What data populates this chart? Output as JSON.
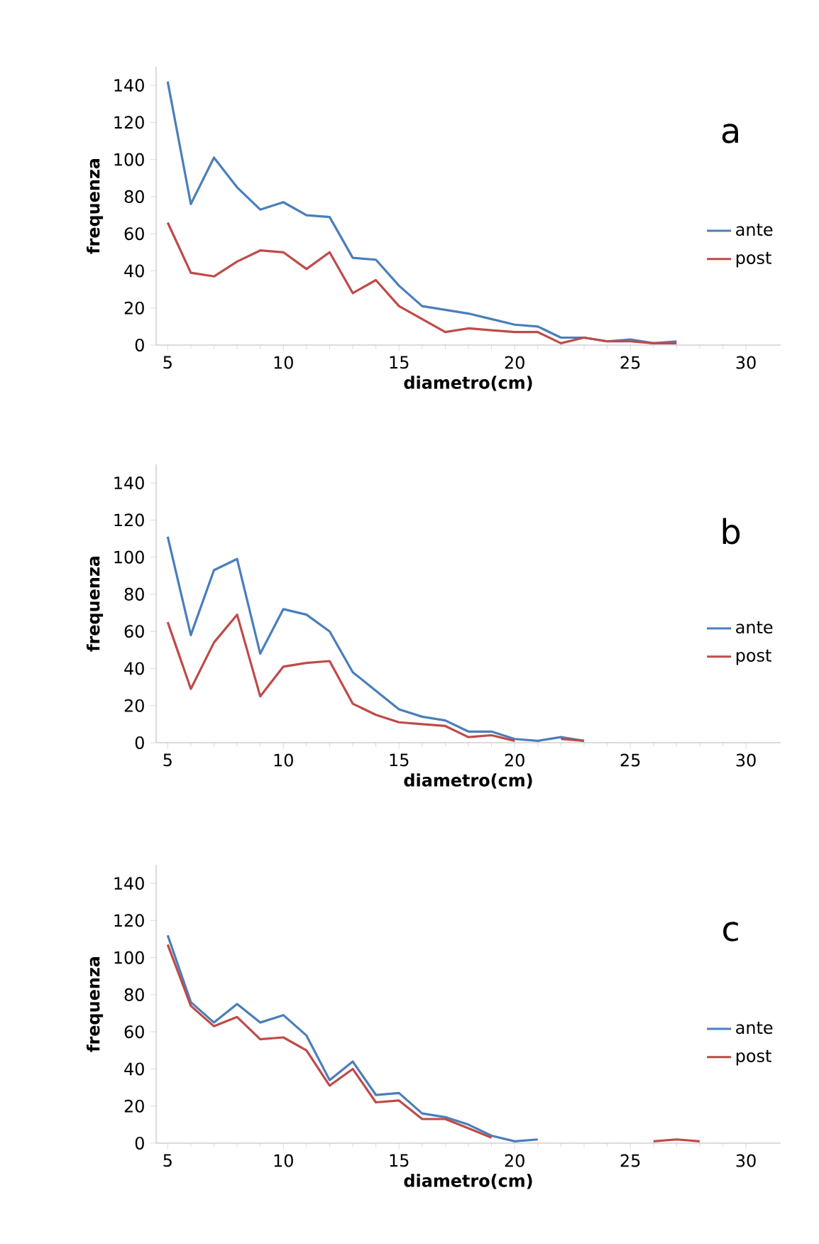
{
  "chart_data": [
    {
      "type": "line",
      "title": "a",
      "xlabel": "diametro(cm)",
      "ylabel": "frequenza",
      "xlim": [
        4.5,
        31.5
      ],
      "ylim": [
        0,
        150
      ],
      "xticks": [
        5,
        10,
        15,
        20,
        25,
        30
      ],
      "yticks": [
        0,
        20,
        40,
        60,
        80,
        100,
        120,
        140
      ],
      "legend": "right",
      "series": [
        {
          "name": "ante",
          "color": "#4a7ebb",
          "x": [
            5,
            6,
            7,
            8,
            9,
            10,
            11,
            12,
            13,
            14,
            15,
            16,
            17,
            18,
            19,
            20,
            21,
            22,
            23,
            24,
            25,
            26,
            27
          ],
          "values": [
            142,
            76,
            101,
            85,
            73,
            77,
            70,
            69,
            47,
            46,
            32,
            21,
            19,
            17,
            14,
            11,
            10,
            4,
            4,
            2,
            3,
            1,
            2
          ]
        },
        {
          "name": "post",
          "color": "#be4b48",
          "x": [
            5,
            6,
            7,
            8,
            9,
            10,
            11,
            12,
            13,
            14,
            15,
            16,
            17,
            18,
            19,
            20,
            21,
            22,
            23,
            24,
            25,
            26,
            27
          ],
          "values": [
            66,
            39,
            37,
            45,
            51,
            50,
            41,
            50,
            28,
            35,
            21,
            14,
            7,
            9,
            8,
            7,
            7,
            1,
            4,
            2,
            2,
            1,
            1
          ]
        }
      ]
    },
    {
      "type": "line",
      "title": "b",
      "xlabel": "diametro(cm)",
      "ylabel": "frequenza",
      "xlim": [
        4.5,
        31.5
      ],
      "ylim": [
        0,
        150
      ],
      "xticks": [
        5,
        10,
        15,
        20,
        25,
        30
      ],
      "yticks": [
        0,
        20,
        40,
        60,
        80,
        100,
        120,
        140
      ],
      "legend": "right",
      "series": [
        {
          "name": "ante",
          "color": "#4a7ebb",
          "x": [
            5,
            6,
            7,
            8,
            9,
            10,
            11,
            12,
            13,
            14,
            15,
            16,
            17,
            18,
            19,
            20,
            21,
            22,
            23
          ],
          "values": [
            111,
            58,
            93,
            99,
            48,
            72,
            69,
            60,
            38,
            28,
            18,
            14,
            12,
            6,
            6,
            2,
            1,
            3,
            1
          ]
        },
        {
          "name": "post",
          "color": "#be4b48",
          "x": [
            5,
            6,
            7,
            8,
            9,
            10,
            11,
            12,
            13,
            14,
            15,
            16,
            17,
            18,
            19,
            20,
            21,
            22,
            23
          ],
          "values": [
            65,
            29,
            54,
            69,
            25,
            41,
            43,
            44,
            21,
            15,
            11,
            10,
            9,
            3,
            4,
            1,
            null,
            2,
            1
          ]
        }
      ]
    },
    {
      "type": "line",
      "title": "c",
      "xlabel": "diametro(cm)",
      "ylabel": "frequenza",
      "xlim": [
        4.5,
        31.5
      ],
      "ylim": [
        0,
        150
      ],
      "xticks": [
        5,
        10,
        15,
        20,
        25,
        30
      ],
      "yticks": [
        0,
        20,
        40,
        60,
        80,
        100,
        120,
        140
      ],
      "legend": "right",
      "series": [
        {
          "name": "ante",
          "color": "#4a7ebb",
          "x": [
            5,
            6,
            7,
            8,
            9,
            10,
            11,
            12,
            13,
            14,
            15,
            16,
            17,
            18,
            19,
            20,
            21
          ],
          "values": [
            112,
            76,
            65,
            75,
            65,
            69,
            58,
            34,
            44,
            26,
            27,
            16,
            14,
            10,
            4,
            1,
            2
          ]
        },
        {
          "name": "post",
          "color": "#be4b48",
          "x": [
            5,
            6,
            7,
            8,
            9,
            10,
            11,
            12,
            13,
            14,
            15,
            16,
            17,
            18,
            19,
            20,
            21,
            22,
            23,
            24,
            25,
            26,
            27,
            28
          ],
          "values": [
            107,
            74,
            63,
            68,
            56,
            57,
            50,
            31,
            40,
            22,
            23,
            13,
            13,
            8,
            3,
            null,
            null,
            null,
            null,
            null,
            null,
            1,
            2,
            1
          ]
        }
      ]
    }
  ]
}
